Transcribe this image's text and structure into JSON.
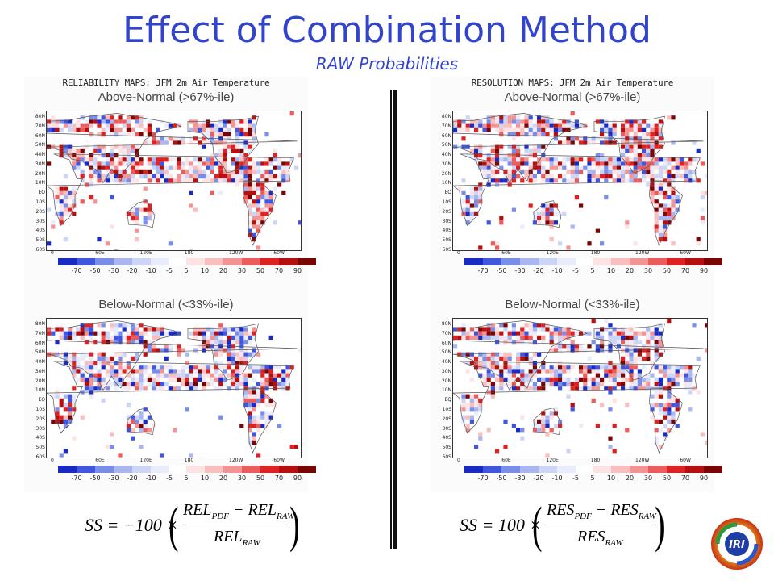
{
  "title": "Effect of Combination Method",
  "subtitle": "RAW Probabilities",
  "panels": [
    {
      "title": "RELIABILITY MAPS: JFM 2m Air Temperature",
      "subtitle": "Above-Normal (>67%-ile)"
    },
    {
      "title": "RESOLUTION MAPS: JFM 2m Air Temperature",
      "subtitle": "Above-Normal (>67%-ile)"
    },
    {
      "title": "",
      "subtitle": "Below-Normal (<33%-ile)"
    },
    {
      "title": "",
      "subtitle": "Below-Normal (<33%-ile)"
    }
  ],
  "lat_labels": [
    "80N",
    "70N",
    "60N",
    "50N",
    "40N",
    "30N",
    "20N",
    "10N",
    "EQ",
    "10S",
    "20S",
    "30S",
    "40S",
    "50S",
    "60S"
  ],
  "lon_labels": [
    "0",
    "60E",
    "120E",
    "180",
    "120W",
    "60W"
  ],
  "colorbar_labels": [
    "-70",
    "-50",
    "-30",
    "-20",
    "-10",
    "-5",
    "5",
    "10",
    "20",
    "30",
    "50",
    "70",
    "90"
  ],
  "colorbar_colors": [
    "#1a2bc4",
    "#3f56dd",
    "#7a8ee8",
    "#a9b6ef",
    "#cdd5f6",
    "#e8ecfb",
    "#fde3e3",
    "#f9bfbf",
    "#f39494",
    "#eb5c5c",
    "#de2222",
    "#b50f0f",
    "#7a0505"
  ],
  "formula_left": {
    "lhs": "SS = −100 ×",
    "num_a": "REL",
    "num_a_sub": "PDF",
    "minus": "−",
    "num_b": "REL",
    "num_b_sub": "RAW",
    "den": "REL",
    "den_sub": "RAW"
  },
  "formula_right": {
    "lhs": "SS = 100 ×",
    "num_a": "RES",
    "num_a_sub": "PDF",
    "minus": "−",
    "num_b": "RES",
    "num_b_sub": "RAW",
    "den": "RES",
    "den_sub": "RAW"
  },
  "logo_text": "IRI"
}
